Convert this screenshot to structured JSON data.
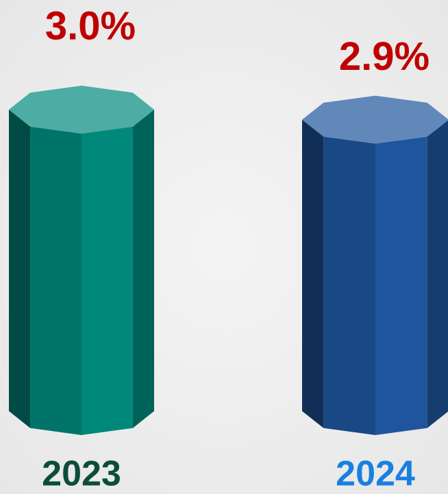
{
  "chart_data": {
    "type": "bar",
    "categories": [
      "2023",
      "2024"
    ],
    "values": [
      3.0,
      2.9
    ],
    "value_labels": [
      "3.0%",
      "2.9%"
    ],
    "colors": [
      "#00897b",
      "#1f559c"
    ],
    "category_label_colors": [
      "#0b4d3b",
      "#1a80e0"
    ],
    "value_label_color": "#c00000"
  }
}
